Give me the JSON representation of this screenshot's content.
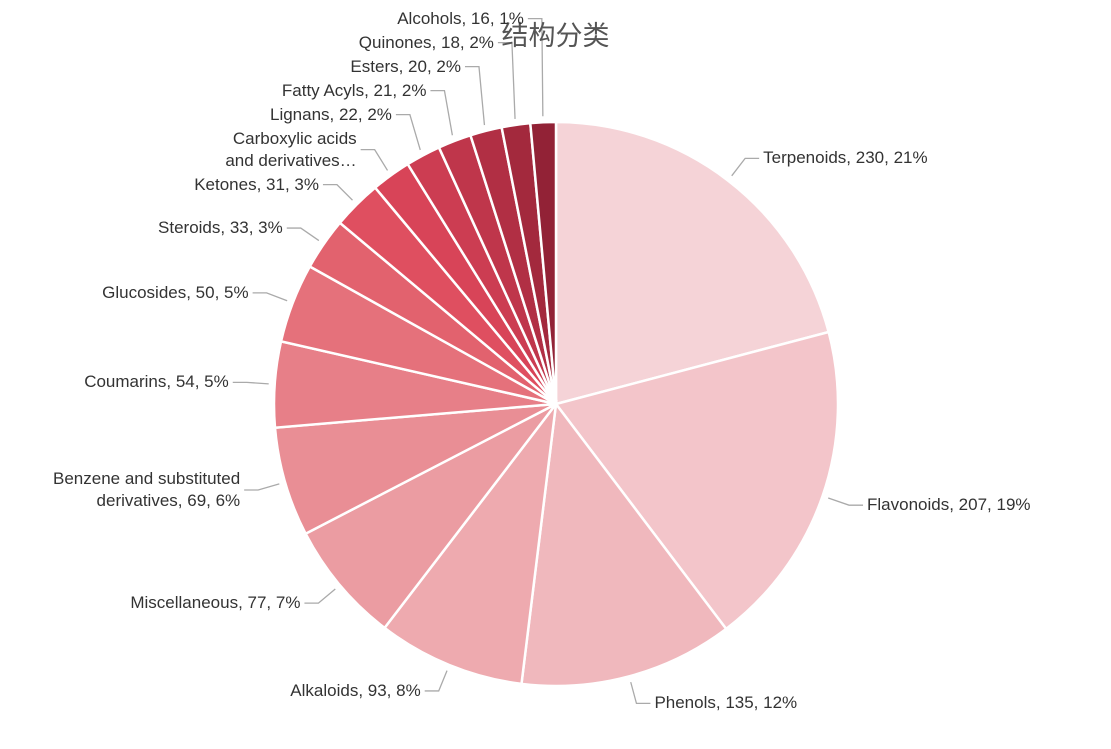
{
  "chart_data": {
    "type": "pie",
    "title": "结构分类",
    "values": [
      230,
      207,
      135,
      93,
      77,
      69,
      54,
      50,
      33,
      31,
      25,
      22,
      21,
      20,
      18,
      16
    ],
    "value_labels": [
      "Terpenoids, 230, 21%",
      "Flavonoids, 207, 19%",
      "Phenols, 135, 12%",
      "Alkaloids, 93, 8%",
      "Miscellaneous, 77, 7%",
      "Benzene and substituted\nderivatives, 69, 6%",
      "Coumarins, 54, 5%",
      "Glucosides, 50, 5%",
      "Steroids, 33, 3%",
      "Ketones, 31, 3%",
      "Carboxylic acids\nand derivatives…",
      "Lignans, 22, 2%",
      "Fatty Acyls, 21, 2%",
      "Esters, 20, 2%",
      "Quinones, 18, 2%",
      "Alcohols, 16, 1%"
    ],
    "colors": [
      "#f5d3d7",
      "#f3c5ca",
      "#f0b8bd",
      "#eeaaaf",
      "#eb9ca2",
      "#e98e95",
      "#e77f88",
      "#e5717b",
      "#e2626e",
      "#df4f60",
      "#d84458",
      "#cc3d52",
      "#bf364b",
      "#b12f44",
      "#a3293d",
      "#922236"
    ]
  }
}
